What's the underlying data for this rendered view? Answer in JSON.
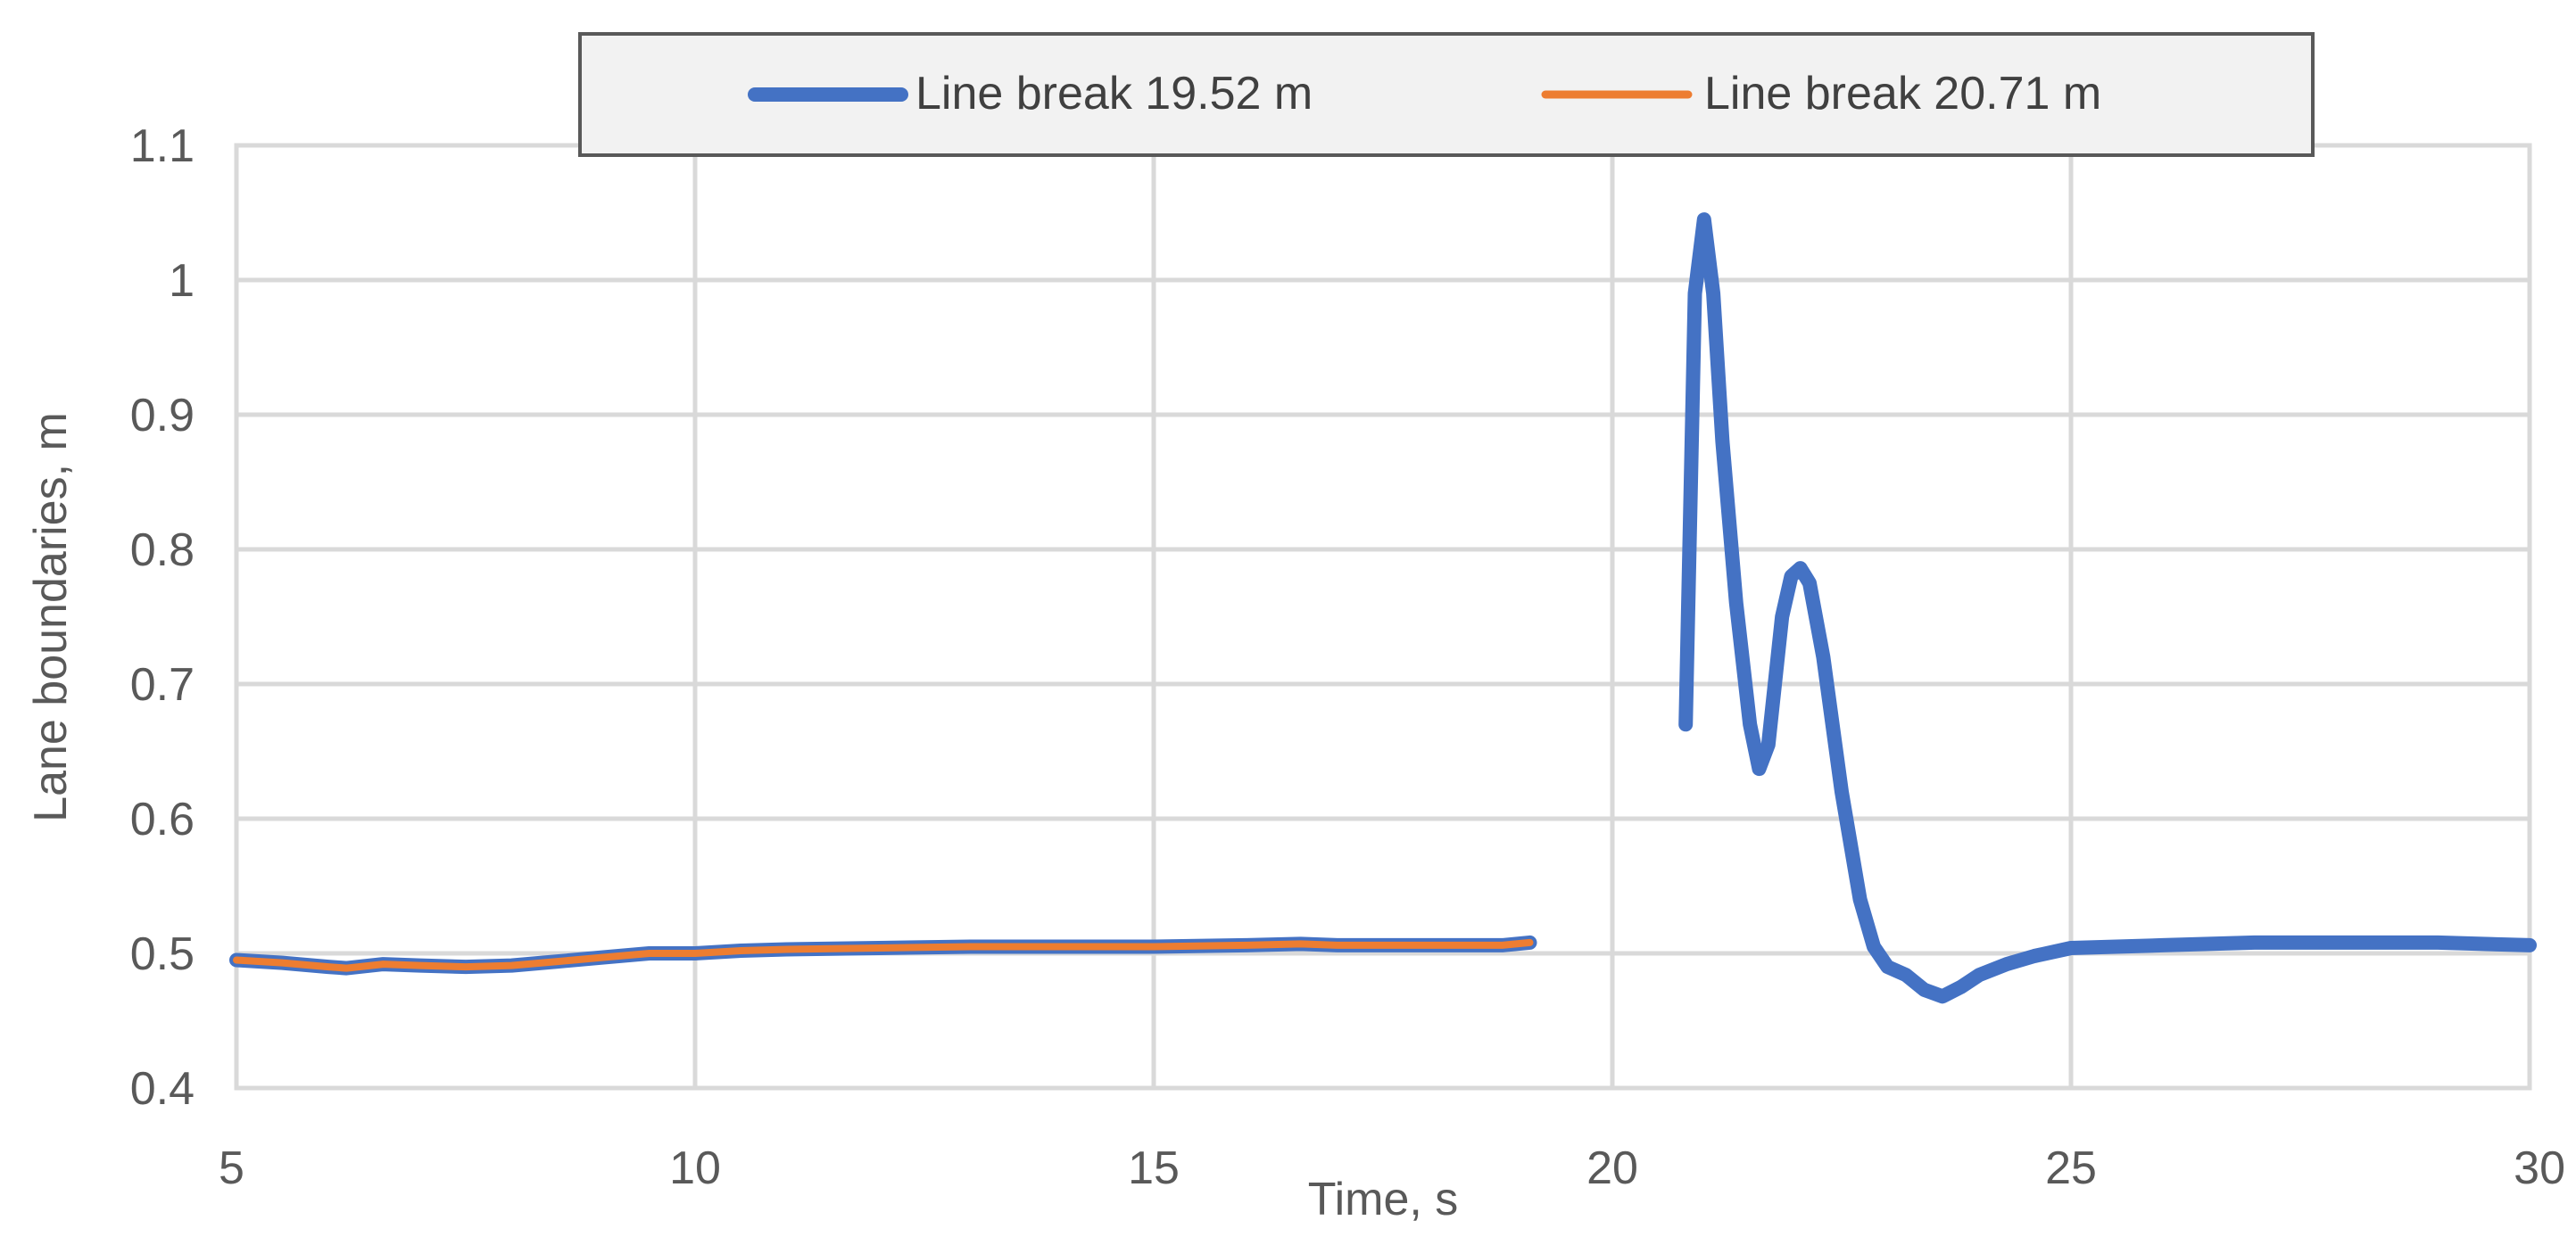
{
  "chart_data": {
    "type": "line",
    "title": "",
    "xlabel": "Time, s",
    "ylabel": "Lane boundaries, m",
    "xlim": [
      5,
      30
    ],
    "ylim": [
      0.4,
      1.1
    ],
    "x_ticks": [
      "5",
      "10",
      "15",
      "20",
      "25",
      "30"
    ],
    "y_ticks": [
      "0.4",
      "0.5",
      "0.6",
      "0.7",
      "0.8",
      "0.9",
      "1",
      "1.1"
    ],
    "grid": true,
    "legend_position": "top",
    "series": [
      {
        "name": "Line break 19.52 m",
        "color": "#4472C4",
        "segments": [
          [
            [
              5.0,
              0.495
            ],
            [
              5.5,
              0.493
            ],
            [
              6.0,
              0.49
            ],
            [
              6.2,
              0.489
            ],
            [
              6.6,
              0.492
            ],
            [
              7.0,
              0.491
            ],
            [
              7.5,
              0.49
            ],
            [
              8.0,
              0.491
            ],
            [
              8.5,
              0.494
            ],
            [
              9.0,
              0.497
            ],
            [
              9.5,
              0.5
            ],
            [
              10.0,
              0.5
            ],
            [
              10.5,
              0.502
            ],
            [
              11.0,
              0.503
            ],
            [
              12.0,
              0.504
            ],
            [
              13.0,
              0.505
            ],
            [
              14.0,
              0.505
            ],
            [
              15.0,
              0.505
            ],
            [
              16.0,
              0.506
            ],
            [
              16.6,
              0.507
            ],
            [
              17.0,
              0.506
            ],
            [
              18.0,
              0.506
            ],
            [
              18.8,
              0.506
            ],
            [
              19.1,
              0.508
            ]
          ],
          [
            [
              20.8,
              0.67
            ],
            [
              20.9,
              0.99
            ],
            [
              21.0,
              1.045
            ],
            [
              21.1,
              0.99
            ],
            [
              21.2,
              0.88
            ],
            [
              21.35,
              0.76
            ],
            [
              21.5,
              0.67
            ],
            [
              21.6,
              0.637
            ],
            [
              21.7,
              0.655
            ],
            [
              21.85,
              0.75
            ],
            [
              21.95,
              0.78
            ],
            [
              22.05,
              0.786
            ],
            [
              22.15,
              0.775
            ],
            [
              22.3,
              0.72
            ],
            [
              22.5,
              0.62
            ],
            [
              22.7,
              0.54
            ],
            [
              22.85,
              0.505
            ],
            [
              23.0,
              0.49
            ],
            [
              23.2,
              0.484
            ],
            [
              23.4,
              0.473
            ],
            [
              23.6,
              0.468
            ],
            [
              23.8,
              0.475
            ],
            [
              24.0,
              0.484
            ],
            [
              24.3,
              0.492
            ],
            [
              24.6,
              0.498
            ],
            [
              25.0,
              0.504
            ],
            [
              26.0,
              0.506
            ],
            [
              27.0,
              0.508
            ],
            [
              28.0,
              0.508
            ],
            [
              29.0,
              0.508
            ],
            [
              30.0,
              0.506
            ]
          ]
        ]
      },
      {
        "name": "Line break 20.71 m",
        "color": "#ED7D31",
        "segments": [
          [
            [
              5.0,
              0.495
            ],
            [
              5.5,
              0.493
            ],
            [
              6.0,
              0.49
            ],
            [
              6.2,
              0.489
            ],
            [
              6.6,
              0.492
            ],
            [
              7.0,
              0.491
            ],
            [
              7.5,
              0.49
            ],
            [
              8.0,
              0.491
            ],
            [
              8.5,
              0.494
            ],
            [
              9.0,
              0.497
            ],
            [
              9.5,
              0.5
            ],
            [
              10.0,
              0.5
            ],
            [
              10.5,
              0.502
            ],
            [
              11.0,
              0.503
            ],
            [
              12.0,
              0.504
            ],
            [
              13.0,
              0.505
            ],
            [
              14.0,
              0.505
            ],
            [
              15.0,
              0.505
            ],
            [
              16.0,
              0.506
            ],
            [
              16.6,
              0.507
            ],
            [
              17.0,
              0.506
            ],
            [
              18.0,
              0.506
            ],
            [
              18.8,
              0.506
            ],
            [
              19.1,
              0.508
            ]
          ]
        ]
      }
    ]
  }
}
